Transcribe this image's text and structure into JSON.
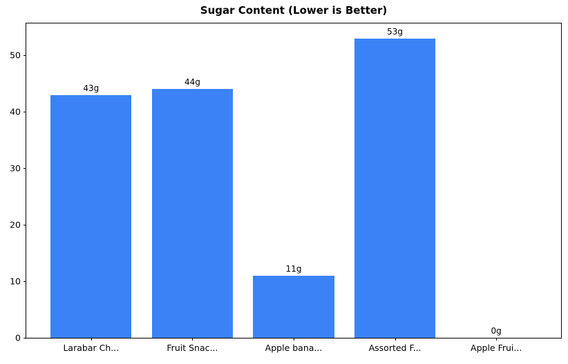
{
  "chart_data": {
    "type": "bar",
    "title": "Sugar Content (Lower is Better)",
    "categories": [
      "Larabar Ch...",
      "Fruit Snac...",
      "Apple bana...",
      "Assorted F...",
      "Apple Frui..."
    ],
    "values": [
      43,
      44,
      11,
      53,
      0
    ],
    "bar_labels": [
      "43g",
      "44g",
      "11g",
      "53g",
      "0g"
    ],
    "xlabel": "",
    "ylabel": "",
    "ylim": [
      0,
      55.65
    ],
    "yticks": [
      0,
      10,
      20,
      30,
      40,
      50
    ],
    "bar_color": "#3b82f6",
    "bar_width_fraction": 0.8,
    "grid": false,
    "legend": "none"
  }
}
